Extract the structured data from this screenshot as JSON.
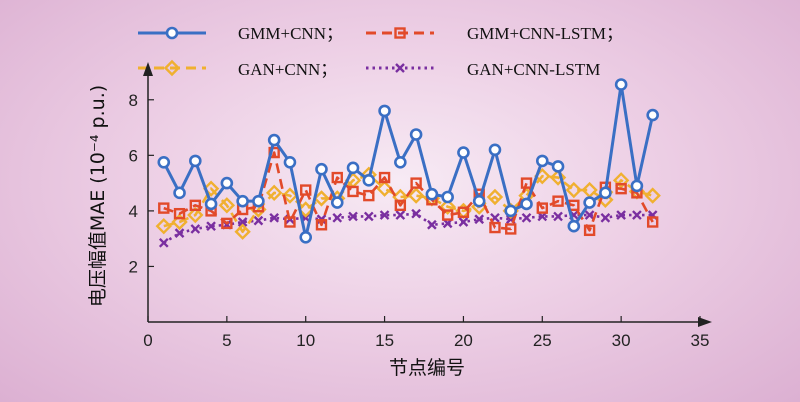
{
  "chart_data": {
    "type": "line",
    "xlabel": "节点编号",
    "ylabel": "电压幅值MAE (10⁻⁴ p.u.)",
    "xlim": [
      0,
      35
    ],
    "ylim": [
      0,
      9
    ],
    "xticks": [
      "0",
      "5",
      "10",
      "15",
      "20",
      "25",
      "30",
      "35"
    ],
    "yticks": [
      "2",
      "4",
      "6",
      "8"
    ],
    "grid": false,
    "legend_position": "top",
    "x": [
      1,
      2,
      3,
      4,
      5,
      6,
      7,
      8,
      9,
      10,
      11,
      12,
      13,
      14,
      15,
      16,
      17,
      18,
      19,
      20,
      21,
      22,
      23,
      24,
      25,
      26,
      27,
      28,
      29,
      30,
      31,
      32
    ],
    "series": [
      {
        "name": "GMM+CNN；",
        "color": "#3a6fc4",
        "marker": "circle",
        "dash": "solid",
        "values": [
          5.75,
          4.65,
          5.8,
          4.25,
          5.0,
          4.35,
          4.35,
          6.55,
          5.75,
          3.05,
          5.5,
          4.3,
          5.55,
          5.1,
          7.6,
          5.75,
          6.75,
          4.6,
          4.5,
          6.1,
          4.35,
          6.2,
          4.0,
          4.25,
          5.8,
          5.6,
          3.45,
          4.3,
          4.65,
          8.55,
          4.9,
          7.45
        ]
      },
      {
        "name": "GMM+CNN-LSTM；",
        "color": "#e24a2a",
        "marker": "square",
        "dash": "dash",
        "values": [
          4.1,
          3.9,
          4.2,
          4.0,
          3.55,
          4.05,
          4.15,
          6.1,
          3.6,
          4.75,
          3.5,
          5.2,
          4.7,
          4.55,
          5.2,
          4.2,
          5.0,
          4.4,
          3.85,
          3.95,
          4.6,
          3.4,
          3.35,
          5.0,
          4.1,
          4.35,
          4.2,
          3.3,
          4.85,
          4.8,
          4.65,
          3.6
        ]
      },
      {
        "name": "GAN+CNN；",
        "color": "#f0b030",
        "marker": "diamond",
        "dash": "dash",
        "values": [
          3.45,
          3.6,
          3.85,
          4.8,
          4.2,
          3.25,
          4.05,
          4.65,
          4.55,
          4.05,
          4.45,
          4.45,
          5.1,
          5.3,
          4.8,
          4.5,
          4.55,
          4.45,
          4.15,
          4.0,
          4.15,
          4.5,
          4.0,
          4.55,
          5.25,
          5.2,
          4.75,
          4.75,
          4.4,
          5.1,
          4.7,
          4.55
        ]
      },
      {
        "name": "GAN+CNN-LSTM",
        "color": "#7a2fa0",
        "marker": "x",
        "dash": "dot",
        "values": [
          2.85,
          3.2,
          3.35,
          3.45,
          3.5,
          3.6,
          3.65,
          3.75,
          3.7,
          3.75,
          3.7,
          3.75,
          3.8,
          3.8,
          3.85,
          3.85,
          3.9,
          3.5,
          3.55,
          3.6,
          3.7,
          3.75,
          3.7,
          3.75,
          3.8,
          3.8,
          3.85,
          3.85,
          3.75,
          3.85,
          3.85,
          3.85
        ]
      }
    ]
  }
}
